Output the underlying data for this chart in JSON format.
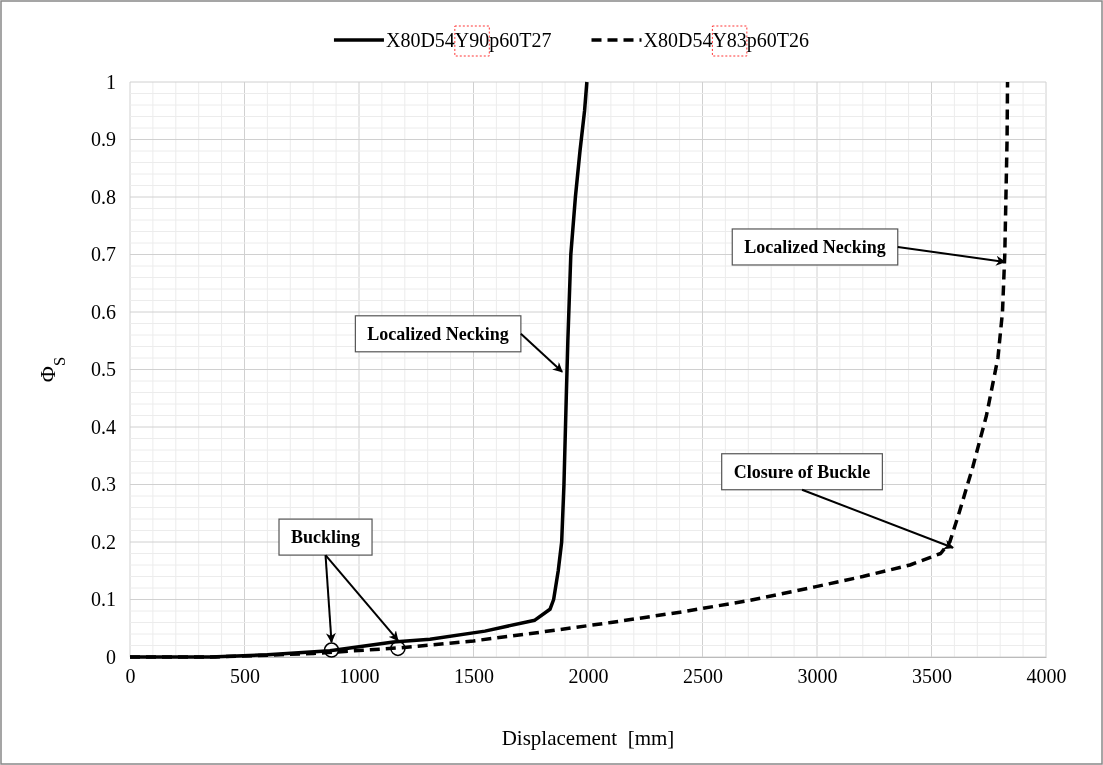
{
  "chart_data": {
    "type": "line",
    "xlabel": "Displacement  [mm]",
    "ylabel": "Φ$_{S}$",
    "xlim": [
      0,
      4000
    ],
    "ylim": [
      0,
      1
    ],
    "xticks": [
      0,
      500,
      1000,
      1500,
      2000,
      2500,
      3000,
      3500,
      4000
    ],
    "yticks": [
      0,
      {
        "value": 0.1,
        "label": "0.1"
      },
      {
        "value": 0.2,
        "label": "0.2"
      },
      {
        "value": 0.3,
        "label": "0.3"
      },
      {
        "value": 0.4,
        "label": "0.4"
      },
      {
        "value": 0.5,
        "label": "0.5"
      },
      {
        "value": 0.6,
        "label": "0.6"
      },
      {
        "value": 0.7,
        "label": "0.7"
      },
      {
        "value": 0.8,
        "label": "0.8"
      },
      {
        "value": 0.9,
        "label": "0.9"
      },
      1
    ],
    "grid": true,
    "legend": "top",
    "marker": "none",
    "series": [
      {
        "name": "X80D54Y90p60T27",
        "color": "#000000",
        "line_style": "solid",
        "x": [
          0,
          350,
          600,
          873,
          1000,
          1150,
          1310,
          1550,
          1768,
          1834,
          1850,
          1870,
          1885,
          1895,
          1905,
          1912,
          1925,
          1945,
          1965,
          1985,
          1995
        ],
        "values": [
          0,
          0,
          0.004,
          0.011,
          0.018,
          0.026,
          0.031,
          0.045,
          0.064,
          0.083,
          0.1,
          0.15,
          0.2,
          0.3,
          0.45,
          0.55,
          0.7,
          0.8,
          0.88,
          0.95,
          1.0
        ]
      },
      {
        "name": "X80D54Y83p60T26",
        "color": "#000000",
        "line_style": "dashed",
        "x": [
          0,
          372,
          800,
          1179,
          1500,
          1790,
          2100,
          2402,
          2700,
          2991,
          3200,
          3406,
          3540,
          3580,
          3620,
          3680,
          3740,
          3790,
          3810,
          3820,
          3825,
          3830,
          3832
        ],
        "values": [
          0,
          0,
          0.006,
          0.016,
          0.028,
          0.043,
          0.06,
          0.078,
          0.098,
          0.122,
          0.14,
          0.16,
          0.18,
          0.2,
          0.25,
          0.33,
          0.42,
          0.52,
          0.6,
          0.7,
          0.8,
          0.9,
          1.0
        ]
      },
      {
        "type": "scatter",
        "marker": "circle",
        "color": "#000000",
        "x": [
          880,
          1170
        ],
        "values": [
          0.012,
          0.015
        ]
      }
    ],
    "annotations": [
      {
        "text": "Buckling",
        "x": 880,
        "y": 0.012
      },
      {
        "text": "Localized Necking",
        "x": 1887,
        "y": 0.496
      },
      {
        "text": "Localized Necking",
        "x": 3821,
        "y": 0.687
      },
      {
        "text": "Closure of Buckle",
        "x": 3594,
        "y": 0.19
      }
    ]
  }
}
